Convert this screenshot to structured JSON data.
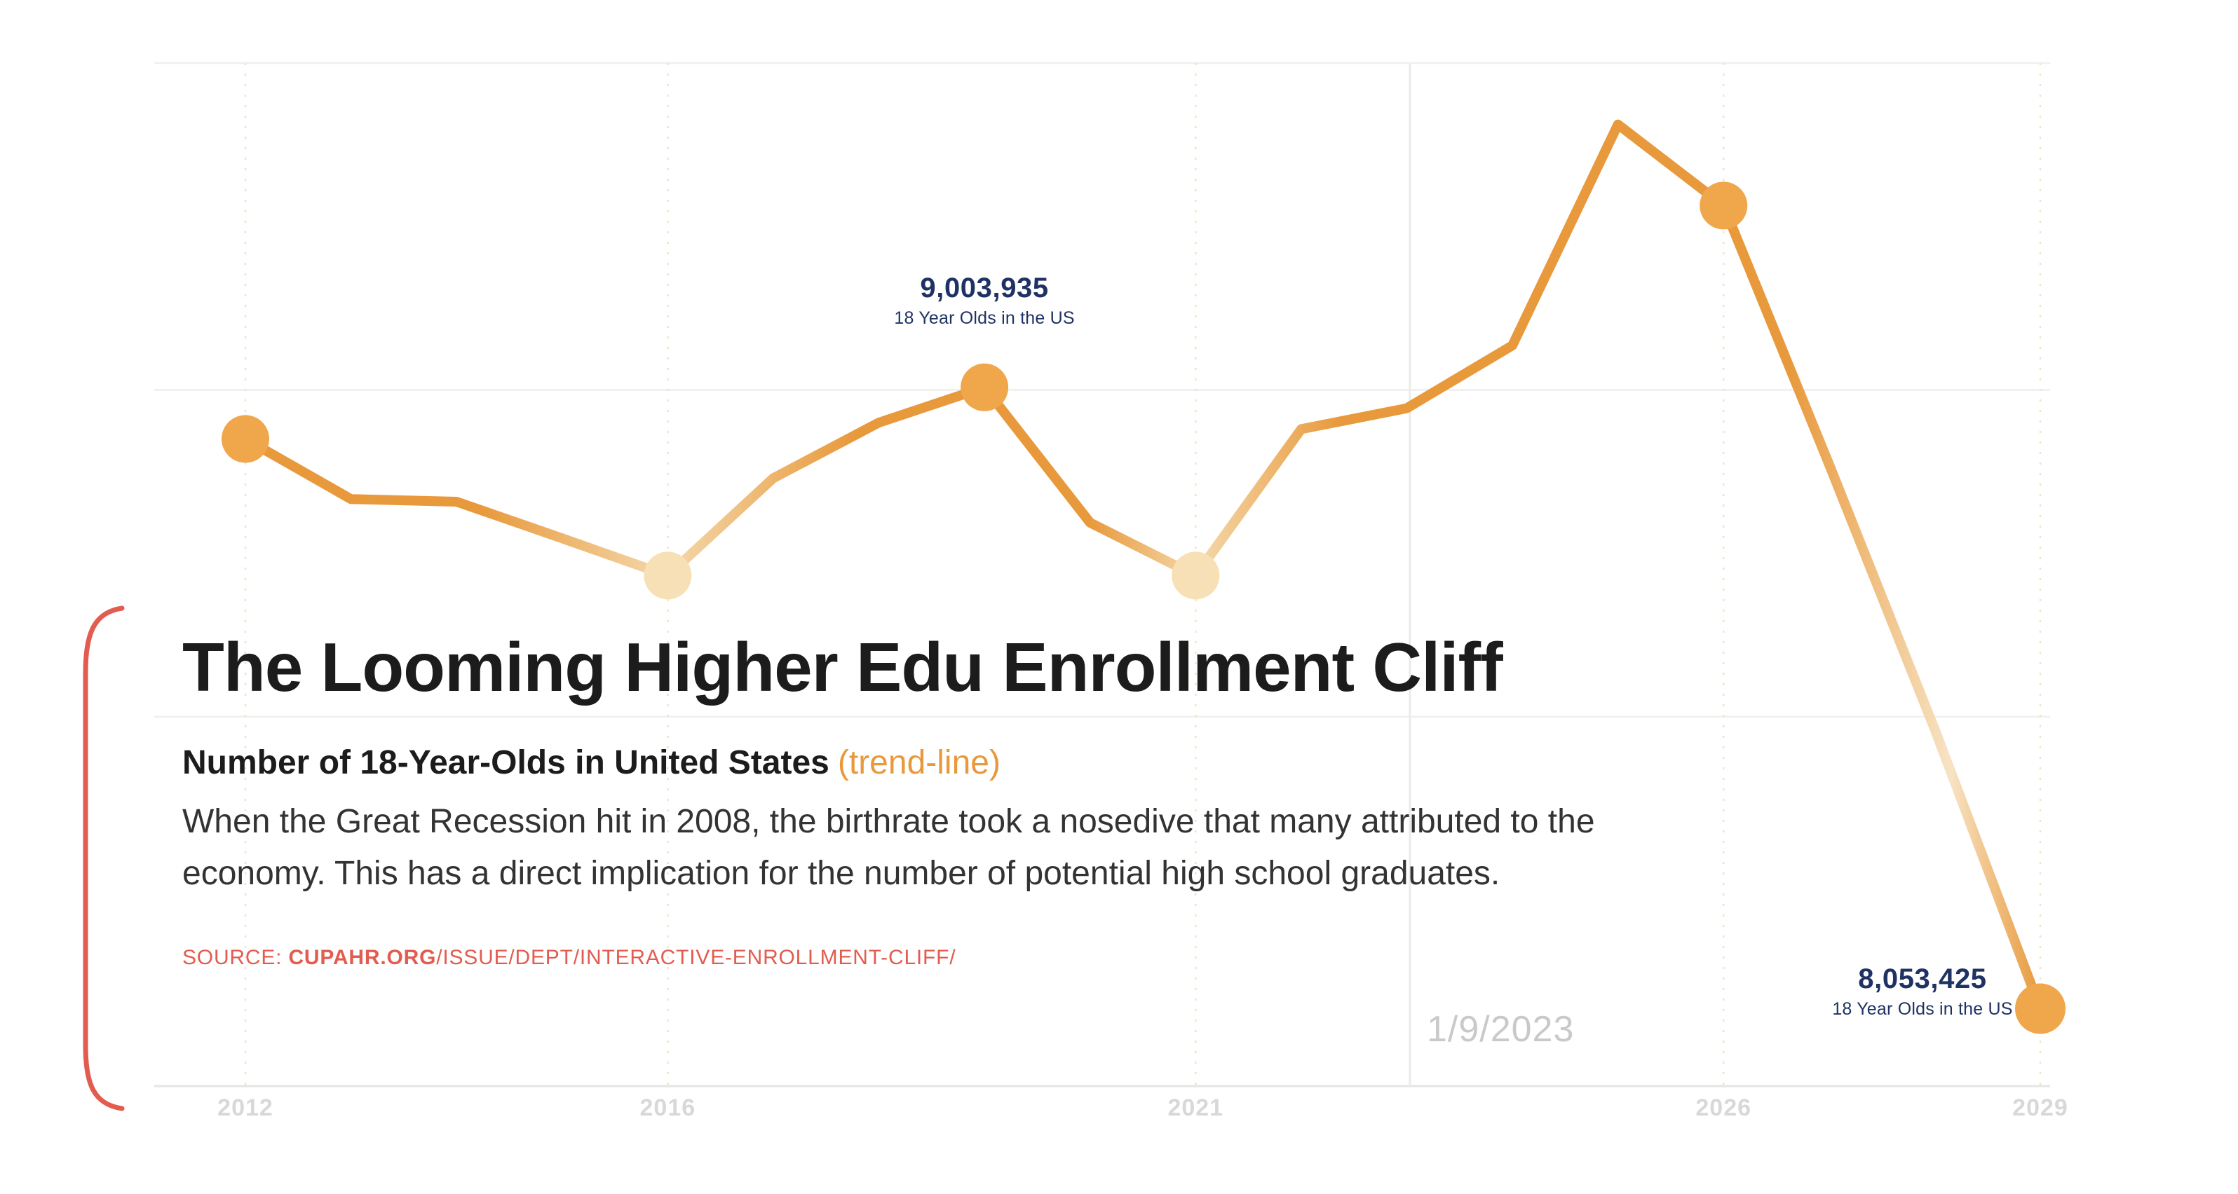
{
  "header": {
    "title": "The Looming Higher Edu Enrollment Cliff",
    "subtitle_bold": "Number of 18-Year-Olds in United States",
    "subtitle_accent": "(trend-line)",
    "description": "When the Great Recession hit in 2008, the birthrate took a nosedive that many attributed to the economy. This has a direct implication for the number of potential high school graduates."
  },
  "source": {
    "prefix": "SOURCE: ",
    "domain": "CUPAHR.ORG",
    "path": "/ISSUE/DEPT/INTERACTIVE-ENROLLMENT-CLIFF/"
  },
  "colors": {
    "line": "#E8993B",
    "line_fade": "#F4D8AB",
    "line_fade_strong": "#F7E3C4",
    "marker_solid": "#F0A64B",
    "marker_pale": "#F8E0B6",
    "accent_red": "#E25C4F",
    "navy": "#1F3264",
    "axis_label": "#D8D8D8",
    "date_gray": "#C9C9C9",
    "title_ink": "#1C1C1C",
    "body_ink": "#333333",
    "grid": "#F0F0F0",
    "axis_line": "#E6E6E6",
    "today_line": "#EBEBEB",
    "dashed_grid": "#F4E3C8"
  },
  "chart_data": {
    "type": "line",
    "title": "Number of 18-Year-Olds in United States (trend-line)",
    "x": [
      2012,
      2013,
      2014,
      2015,
      2016,
      2017,
      2018,
      2019,
      2020,
      2021,
      2022,
      2023,
      2024,
      2025,
      2026,
      2027,
      2028,
      2029
    ],
    "values": [
      8925000,
      8833000,
      8829000,
      8773000,
      8716000,
      8865000,
      8950000,
      9003935,
      8797000,
      8716000,
      8940000,
      8972000,
      9068000,
      9406000,
      9282000,
      8886000,
      8481000,
      8053425
    ],
    "xticks": [
      2012,
      2016,
      2021,
      2026,
      2029
    ],
    "ylim": [
      7935000,
      9500000
    ],
    "grid_values": [
      9500000,
      9000000,
      8500000
    ],
    "legend": "none",
    "markers": [
      {
        "year": 2012,
        "style": "solid"
      },
      {
        "year": 2016,
        "style": "pale"
      },
      {
        "year": 2019,
        "style": "solid"
      },
      {
        "year": 2021,
        "style": "pale"
      },
      {
        "year": 2026,
        "style": "solid"
      },
      {
        "year": 2029,
        "style": "solid",
        "r": 18
      }
    ],
    "annotations": [
      {
        "year": 2019,
        "value": 9003935,
        "value_label": "9,003,935",
        "sublabel": "18 Year Olds in the US",
        "position": "above"
      },
      {
        "year": 2029,
        "value": 8053425,
        "value_label": "8,053,425",
        "sublabel": "18 Year Olds in the US",
        "position": "left"
      }
    ],
    "today_marker": {
      "year_position": 2023.03,
      "label": "1/9/2023"
    }
  }
}
